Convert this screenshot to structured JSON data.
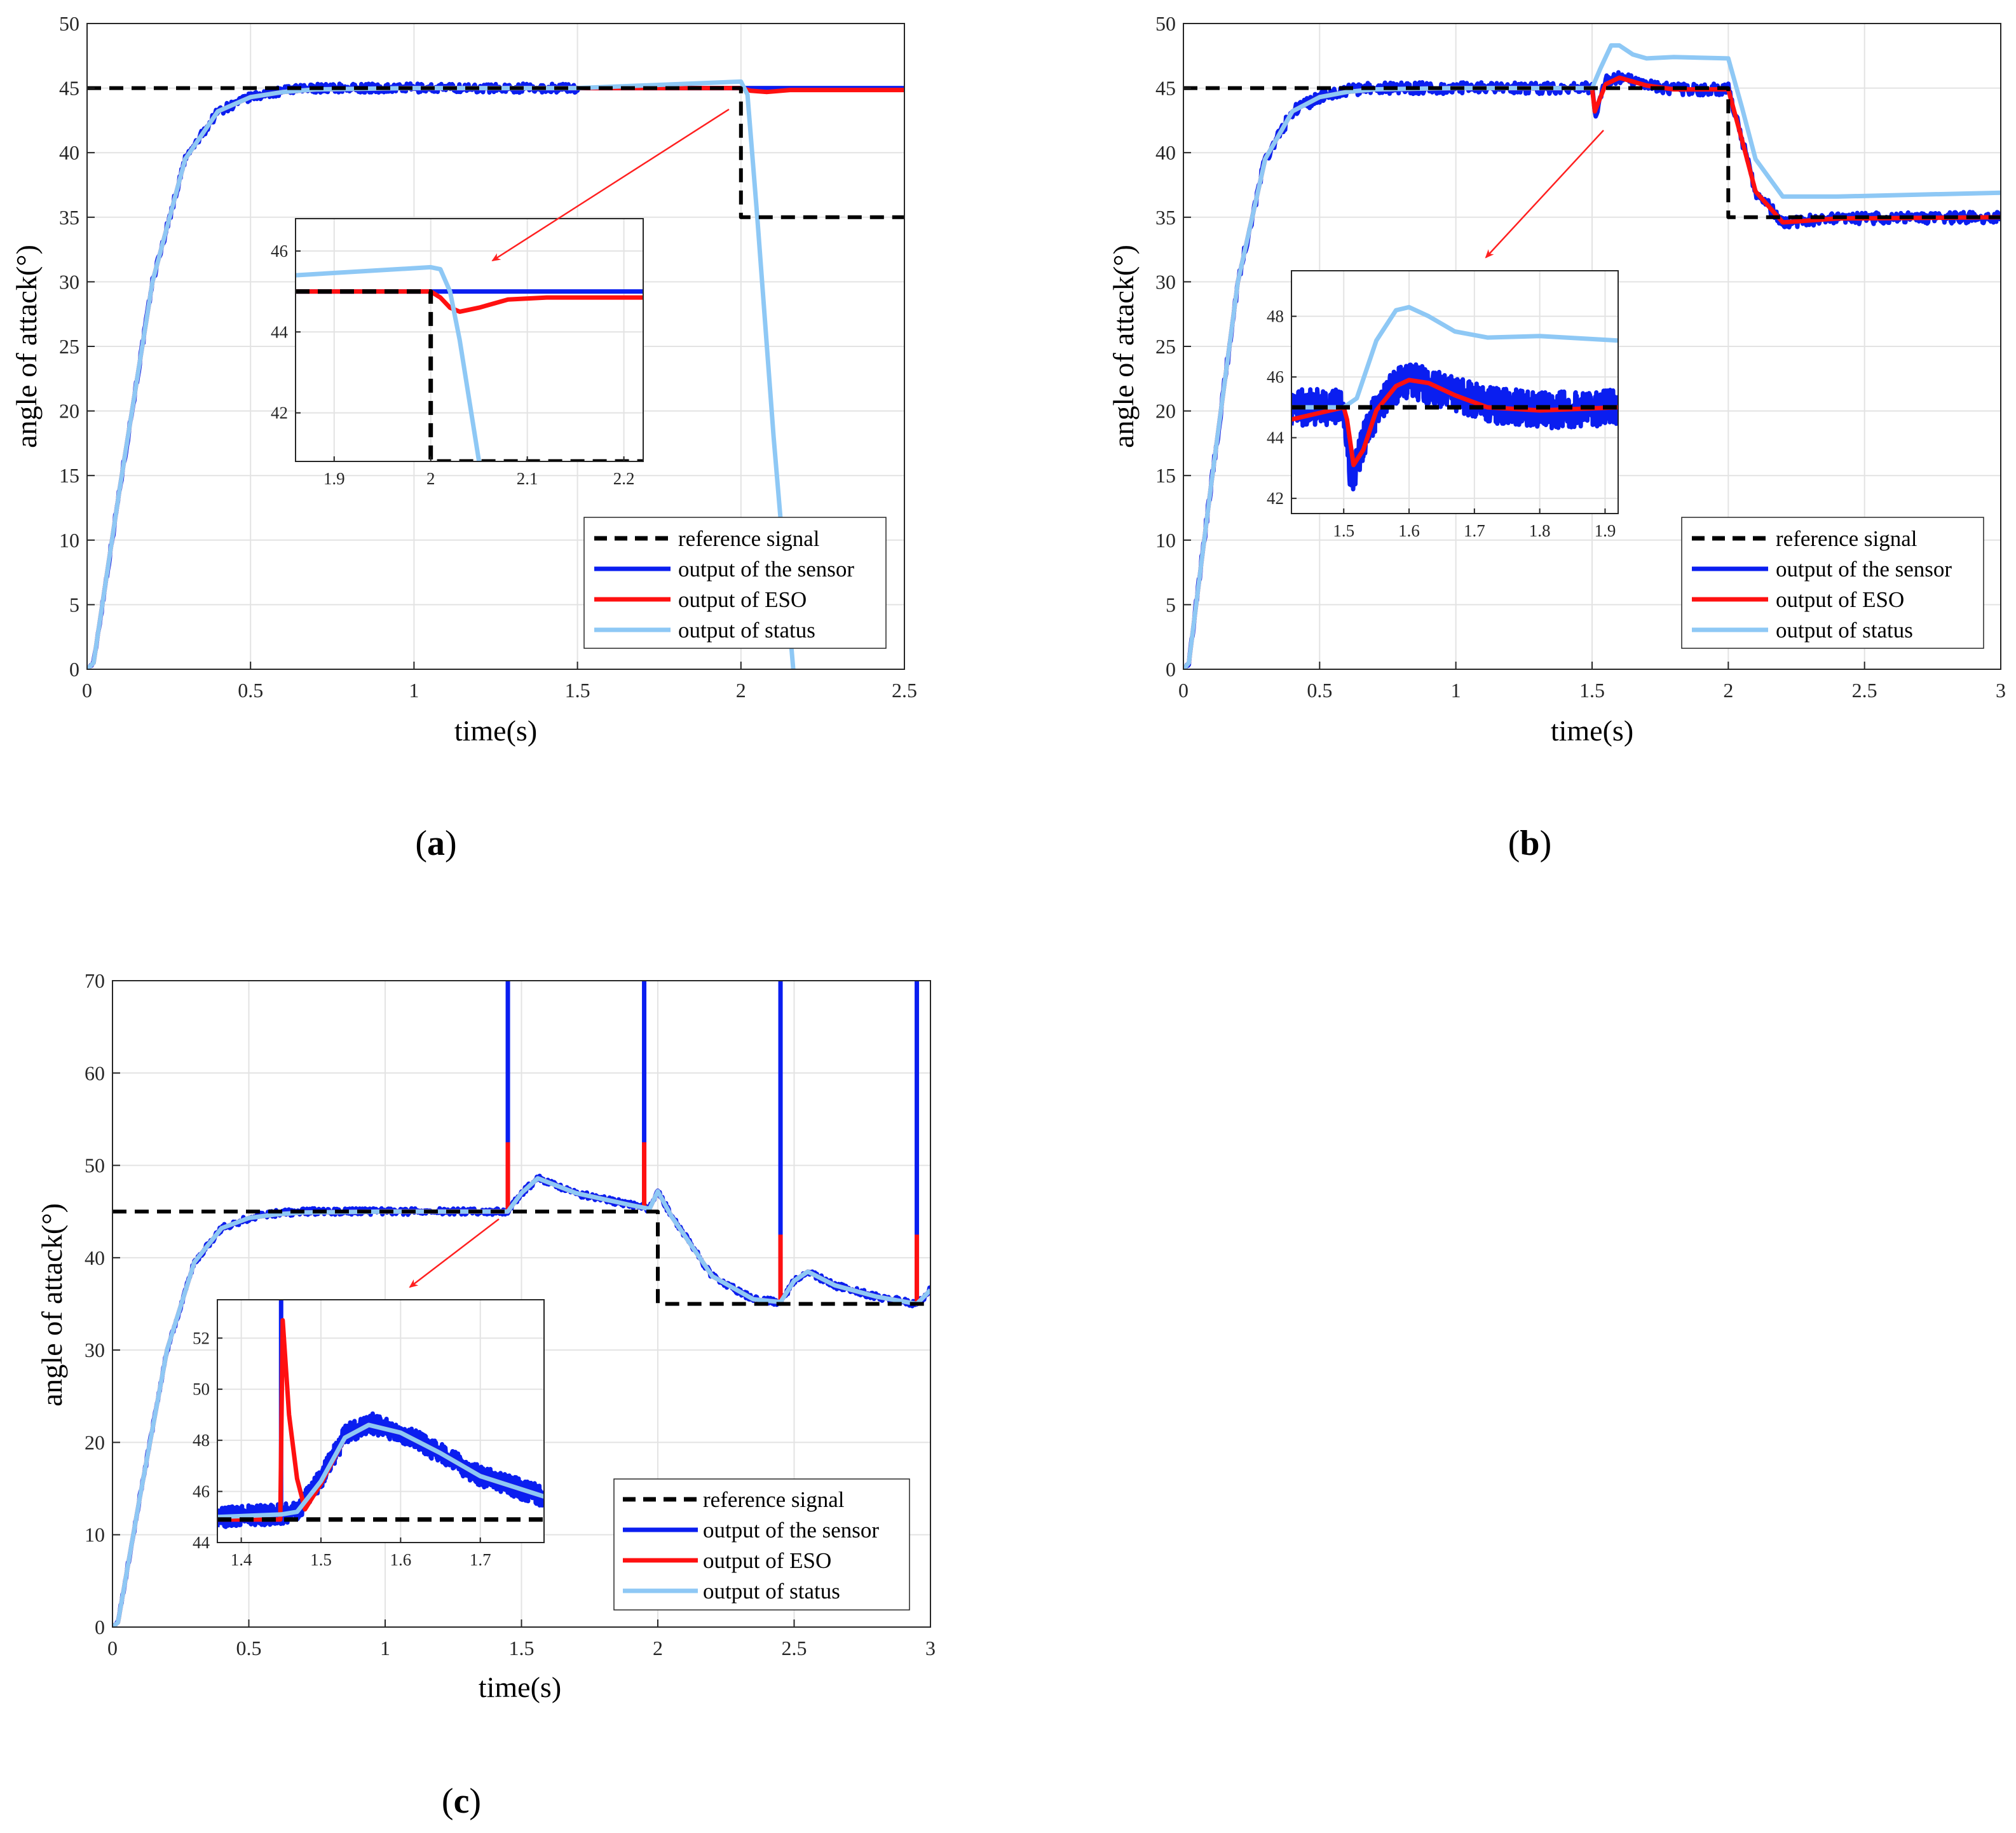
{
  "figure": {
    "panel_labels": [
      {
        "open": "(",
        "letter": "a",
        "close": ")"
      },
      {
        "open": "(",
        "letter": "b",
        "close": ")"
      },
      {
        "open": "(",
        "letter": "c",
        "close": ")"
      }
    ]
  },
  "colors": {
    "reference": "#000000",
    "sensor": "#0a1ef0",
    "eso": "#ff1010",
    "status": "#8ec8f5",
    "arrow": "#ff2020",
    "grid": "#e3e3e3"
  },
  "chart_data": [
    {
      "id": "a",
      "type": "line",
      "xlabel": "time(s)",
      "ylabel": "angle of attack(°)",
      "xlim": [
        0,
        2.5
      ],
      "ylim": [
        0,
        50
      ],
      "xticks": [
        0,
        0.5,
        1,
        1.5,
        2,
        2.5
      ],
      "xtick_labels": [
        "0",
        "0.5",
        "1",
        "1.5",
        "2",
        "2.5"
      ],
      "yticks": [
        0,
        5,
        10,
        15,
        20,
        25,
        30,
        35,
        40,
        45,
        50
      ],
      "ytick_labels": [
        "0",
        "5",
        "10",
        "15",
        "20",
        "25",
        "30",
        "35",
        "40",
        "45",
        "50"
      ],
      "legend": [
        "reference signal",
        "output of the sensor",
        "output of ESO",
        "output of status"
      ],
      "series": [
        {
          "name": "reference signal",
          "style": "dashed",
          "x": [
            0,
            2,
            2,
            2.5
          ],
          "y": [
            45,
            45,
            35,
            35
          ]
        },
        {
          "name": "output of the sensor",
          "noise": 0.35,
          "x": [
            0,
            0.02,
            0.1,
            0.2,
            0.3,
            0.4,
            0.5,
            0.6,
            0.7,
            1.0,
            1.5,
            1.5,
            2.5
          ],
          "y": [
            0,
            0.5,
            14,
            30,
            39.5,
            43.2,
            44.3,
            44.8,
            45,
            45,
            45,
            45,
            45
          ],
          "noise_until": 1.5
        },
        {
          "name": "output of ESO",
          "x": [
            0,
            0.02,
            0.1,
            0.2,
            0.3,
            0.4,
            0.5,
            0.6,
            0.7,
            1.0,
            2.0,
            2.03,
            2.08,
            2.15,
            2.5
          ],
          "y": [
            0,
            0.5,
            14,
            30,
            39.5,
            43.2,
            44.3,
            44.7,
            44.9,
            45,
            45,
            44.8,
            44.7,
            44.85,
            44.85
          ]
        },
        {
          "name": "output of status",
          "x": [
            0,
            0.02,
            0.1,
            0.2,
            0.3,
            0.4,
            0.5,
            0.6,
            0.7,
            1.0,
            1.5,
            2.0,
            2.02,
            2.05,
            2.1,
            2.16
          ],
          "y": [
            0,
            0.5,
            14,
            30,
            39.5,
            43.2,
            44.3,
            44.7,
            44.9,
            45,
            45,
            45.5,
            44.5,
            35,
            18,
            0
          ]
        }
      ],
      "inset": {
        "xlim": [
          1.86,
          2.22
        ],
        "ylim": [
          40.8,
          46.8
        ],
        "xticks": [
          1.9,
          2,
          2.1,
          2.2
        ],
        "xtick_labels": [
          "1.9",
          "2",
          "2.1",
          "2.2"
        ],
        "yticks": [
          42,
          44,
          46
        ],
        "ytick_labels": [
          "42",
          "44",
          "46"
        ],
        "series": [
          {
            "name": "reference signal",
            "style": "dashed",
            "x": [
              1.86,
              2,
              2,
              2.22
            ],
            "y": [
              45,
              45,
              40.8,
              40.8
            ]
          },
          {
            "name": "output of the sensor",
            "x": [
              1.86,
              2.22
            ],
            "y": [
              45,
              45
            ]
          },
          {
            "name": "output of ESO",
            "x": [
              1.86,
              2.0,
              2.01,
              2.02,
              2.03,
              2.05,
              2.08,
              2.12,
              2.22
            ],
            "y": [
              45,
              45,
              44.85,
              44.6,
              44.5,
              44.6,
              44.8,
              44.85,
              44.85
            ]
          },
          {
            "name": "output of status",
            "x": [
              1.86,
              2.0,
              2.01,
              2.02,
              2.03,
              2.05
            ],
            "y": [
              45.4,
              45.6,
              45.55,
              45.0,
              43.8,
              40.8
            ]
          }
        ]
      }
    },
    {
      "id": "b",
      "type": "line",
      "xlabel": "time(s)",
      "ylabel": "angle of attack(°)",
      "xlim": [
        0,
        3
      ],
      "ylim": [
        0,
        50
      ],
      "xticks": [
        0,
        0.5,
        1,
        1.5,
        2,
        2.5,
        3
      ],
      "xtick_labels": [
        "0",
        "0.5",
        "1",
        "1.5",
        "2",
        "2.5",
        "3"
      ],
      "yticks": [
        0,
        5,
        10,
        15,
        20,
        25,
        30,
        35,
        40,
        45,
        50
      ],
      "ytick_labels": [
        "0",
        "5",
        "10",
        "15",
        "20",
        "25",
        "30",
        "35",
        "40",
        "45",
        "50"
      ],
      "legend": [
        "reference signal",
        "output of the sensor",
        "output of ESO",
        "output of status"
      ],
      "series": [
        {
          "name": "reference signal",
          "style": "dashed",
          "x": [
            0,
            2,
            2,
            3
          ],
          "y": [
            45,
            45,
            35,
            35
          ]
        },
        {
          "name": "output of the sensor",
          "noise": 0.45,
          "x": [
            0,
            0.02,
            0.1,
            0.2,
            0.3,
            0.4,
            0.5,
            0.6,
            0.7,
            1.0,
            1.5,
            1.51,
            1.55,
            1.6,
            1.7,
            1.8,
            2.0,
            2.05,
            2.1,
            2.2,
            2.4,
            3.0
          ],
          "y": [
            0,
            0.5,
            14,
            30,
            39.5,
            43.2,
            44.3,
            44.8,
            45,
            45,
            45,
            42.8,
            45.5,
            45.8,
            45.2,
            44.9,
            44.9,
            41,
            37,
            34.6,
            34.9,
            35
          ]
        },
        {
          "name": "output of ESO",
          "x": [
            0,
            0.02,
            0.1,
            0.2,
            0.3,
            0.4,
            0.5,
            0.6,
            0.7,
            1.0,
            1.5,
            1.51,
            1.55,
            1.6,
            1.7,
            1.8,
            2.0,
            2.05,
            2.1,
            2.2,
            2.4,
            3.0
          ],
          "y": [
            0,
            0.5,
            14,
            30,
            39.5,
            43.2,
            44.3,
            44.7,
            44.9,
            45,
            45,
            43.2,
            45.3,
            45.8,
            45.2,
            44.9,
            44.9,
            41,
            37,
            34.6,
            34.9,
            35
          ]
        },
        {
          "name": "output of status",
          "x": [
            0,
            0.02,
            0.1,
            0.2,
            0.3,
            0.4,
            0.5,
            0.6,
            0.7,
            1.0,
            1.5,
            1.53,
            1.57,
            1.6,
            1.65,
            1.7,
            1.8,
            2.0,
            2.05,
            2.1,
            2.2,
            2.4,
            3.0
          ],
          "y": [
            0,
            0.5,
            14,
            30,
            39.5,
            43.2,
            44.3,
            44.7,
            44.9,
            45,
            45,
            46.5,
            48.3,
            48.3,
            47.6,
            47.3,
            47.4,
            47.3,
            43.5,
            39.5,
            36.6,
            36.6,
            36.9
          ]
        }
      ],
      "inset": {
        "xlim": [
          1.42,
          1.92
        ],
        "ylim": [
          41.5,
          49.5
        ],
        "xticks": [
          1.5,
          1.6,
          1.7,
          1.8,
          1.9
        ],
        "xtick_labels": [
          "1.5",
          "1.6",
          "1.7",
          "1.8",
          "1.9"
        ],
        "yticks": [
          42,
          44,
          46,
          48
        ],
        "ytick_labels": [
          "42",
          "44",
          "46",
          "48"
        ],
        "series": [
          {
            "name": "reference signal",
            "style": "dashed",
            "x": [
              1.42,
              1.92
            ],
            "y": [
              45,
              45
            ]
          },
          {
            "name": "output of the sensor",
            "noise": 0.6,
            "x": [
              1.42,
              1.5,
              1.51,
              1.52,
              1.54,
              1.57,
              1.6,
              1.63,
              1.67,
              1.72,
              1.8,
              1.92
            ],
            "y": [
              45,
              45,
              42.6,
              43.2,
              44.5,
              45.6,
              45.9,
              45.7,
              45.4,
              45.1,
              44.9,
              45
            ]
          },
          {
            "name": "output of ESO",
            "x": [
              1.42,
              1.5,
              1.505,
              1.515,
              1.53,
              1.55,
              1.58,
              1.6,
              1.63,
              1.67,
              1.72,
              1.8,
              1.92
            ],
            "y": [
              44.6,
              45,
              44.6,
              43.1,
              43.6,
              44.9,
              45.7,
              45.9,
              45.8,
              45.4,
              45.0,
              44.9,
              45
            ]
          },
          {
            "name": "output of status",
            "x": [
              1.42,
              1.5,
              1.52,
              1.55,
              1.58,
              1.6,
              1.63,
              1.67,
              1.72,
              1.8,
              1.92
            ],
            "y": [
              45,
              45,
              45.3,
              47.2,
              48.2,
              48.3,
              48.0,
              47.5,
              47.3,
              47.35,
              47.2
            ]
          }
        ]
      }
    },
    {
      "id": "c",
      "type": "line",
      "xlabel": "time(s)",
      "ylabel": "angle of attack(°)",
      "xlim": [
        0,
        3
      ],
      "ylim": [
        0,
        70
      ],
      "xticks": [
        0,
        0.5,
        1,
        1.5,
        2,
        2.5,
        3
      ],
      "xtick_labels": [
        "0",
        "0.5",
        "1",
        "1.5",
        "2",
        "2.5",
        "3"
      ],
      "yticks": [
        0,
        10,
        20,
        30,
        40,
        50,
        60,
        70
      ],
      "ytick_labels": [
        "0",
        "10",
        "20",
        "30",
        "40",
        "50",
        "60",
        "70"
      ],
      "legend": [
        "reference signal",
        "output of the sensor",
        "output of ESO",
        "output of status"
      ],
      "spike_times": [
        1.45,
        1.95,
        2.45,
        2.95
      ],
      "eso_spike_peaks": [
        52.5,
        52.5,
        42.5,
        42.5
      ],
      "series": [
        {
          "name": "reference signal",
          "style": "dashed",
          "x": [
            0,
            2,
            2,
            3
          ],
          "y": [
            45,
            45,
            35,
            35
          ]
        },
        {
          "name": "output of the sensor",
          "noise": 0.35,
          "x": [
            0,
            0.02,
            0.1,
            0.2,
            0.3,
            0.4,
            0.5,
            0.6,
            0.7,
            1.0,
            1.45,
            1.5,
            1.56,
            1.7,
            1.9,
            1.97,
            2.0,
            2.05,
            2.2,
            2.35,
            2.45,
            2.5,
            2.55,
            2.65,
            2.8,
            2.95,
            3.0
          ],
          "y": [
            0,
            0.5,
            14,
            30,
            39.5,
            43.2,
            44.3,
            44.8,
            45,
            45,
            45,
            47,
            48.6,
            47,
            45.7,
            45.3,
            47.2,
            44.5,
            38,
            35.5,
            35.2,
            37.5,
            38.5,
            37,
            35.8,
            35,
            36.5
          ]
        },
        {
          "name": "output of ESO",
          "x": [
            0,
            0.02,
            0.1,
            0.2,
            0.3,
            0.4,
            0.5,
            0.6,
            0.7,
            1.0,
            1.45,
            1.5,
            1.56,
            1.7,
            1.9,
            1.97,
            2.0,
            2.05,
            2.2,
            2.35,
            2.45,
            2.5,
            2.55,
            2.65,
            2.8,
            2.95,
            3.0
          ],
          "y": [
            0,
            0.5,
            14,
            30,
            39.5,
            43.2,
            44.3,
            44.7,
            44.9,
            45,
            45,
            47,
            48.6,
            47,
            45.7,
            45.3,
            47.2,
            44.5,
            38,
            35.5,
            35.2,
            37.5,
            38.5,
            37,
            35.8,
            35,
            36.5
          ]
        },
        {
          "name": "output of status",
          "x": [
            0,
            0.02,
            0.1,
            0.2,
            0.3,
            0.4,
            0.5,
            0.6,
            0.7,
            1.0,
            1.45,
            1.5,
            1.56,
            1.7,
            1.9,
            1.97,
            2.0,
            2.05,
            2.2,
            2.35,
            2.45,
            2.5,
            2.55,
            2.65,
            2.8,
            2.95,
            3.0
          ],
          "y": [
            0,
            0.5,
            14,
            30,
            39.5,
            43.2,
            44.3,
            44.7,
            44.9,
            45,
            45,
            47,
            48.6,
            47,
            45.7,
            45.3,
            47.2,
            44.5,
            38,
            35.5,
            35.2,
            37.5,
            38.5,
            37,
            35.8,
            35,
            36.5
          ]
        }
      ],
      "inset": {
        "xlim": [
          1.37,
          1.78
        ],
        "ylim": [
          44,
          53.5
        ],
        "xticks": [
          1.4,
          1.5,
          1.6,
          1.7
        ],
        "xtick_labels": [
          "1.4",
          "1.5",
          "1.6",
          "1.7"
        ],
        "yticks": [
          44,
          46,
          48,
          50,
          52
        ],
        "ytick_labels": [
          "44",
          "46",
          "48",
          "50",
          "52"
        ],
        "series": [
          {
            "name": "reference signal",
            "style": "dashed",
            "x": [
              1.37,
              1.78
            ],
            "y": [
              44.9,
              44.9
            ]
          },
          {
            "name": "output of the sensor",
            "noise": 0.4,
            "x": [
              1.37,
              1.45,
              1.47,
              1.5,
              1.53,
              1.56,
              1.6,
              1.65,
              1.7,
              1.78
            ],
            "y": [
              45,
              45.1,
              45.2,
              46.5,
              48.2,
              48.7,
              48.3,
              47.5,
              46.6,
              45.8
            ],
            "spike_x": 1.45
          },
          {
            "name": "output of ESO",
            "x": [
              1.37,
              1.449,
              1.452,
              1.46,
              1.47,
              1.48,
              1.5,
              1.53,
              1.56,
              1.6,
              1.65,
              1.7,
              1.78
            ],
            "y": [
              44.9,
              44.9,
              52.7,
              49,
              46.5,
              45.3,
              46.3,
              48.1,
              48.6,
              48.3,
              47.5,
              46.6,
              45.8
            ]
          },
          {
            "name": "output of status",
            "x": [
              1.37,
              1.45,
              1.47,
              1.5,
              1.53,
              1.56,
              1.6,
              1.65,
              1.7,
              1.78
            ],
            "y": [
              45,
              45.1,
              45.2,
              46.4,
              48.1,
              48.6,
              48.3,
              47.5,
              46.6,
              45.8
            ]
          }
        ]
      }
    }
  ]
}
